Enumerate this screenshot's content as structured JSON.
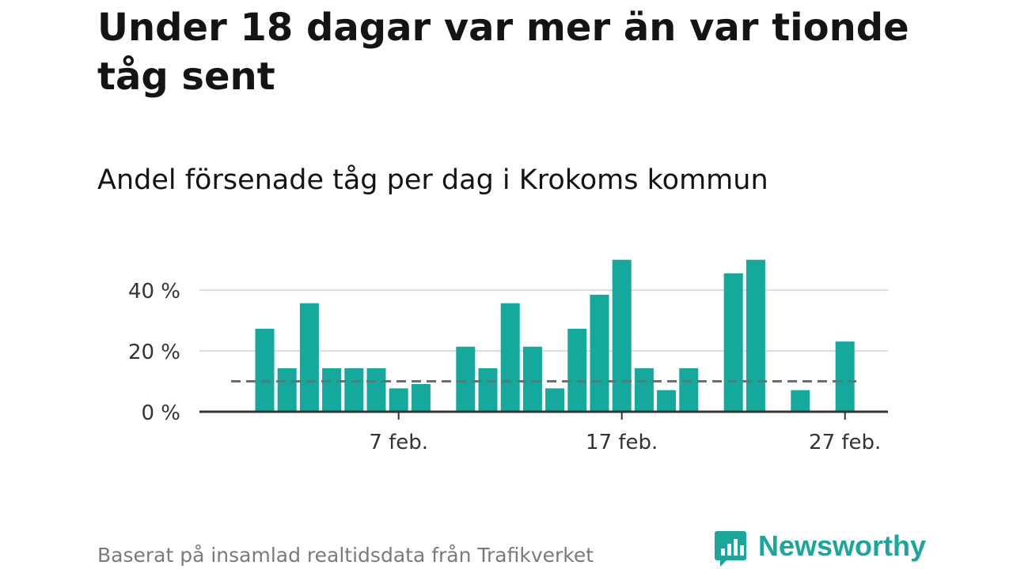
{
  "title": "Under 18 dagar var mer än var tionde tåg sent",
  "subtitle": "Andel försenade tåg per dag i Krokoms kommun",
  "footer": "Baserat på insamlad realtidsdata från Trafikverket",
  "brand": {
    "name": "Newsworthy",
    "icon": "newsworthy-logo-icon"
  },
  "colors": {
    "bar": "#15a89d",
    "reference": "#6f6f6f",
    "grid": "#dcdcdc",
    "axis": "#333333"
  },
  "chart_data": {
    "type": "bar",
    "unit": "%",
    "y_ticks": [
      {
        "value": 0,
        "label": "0 %"
      },
      {
        "value": 20,
        "label": "20 %"
      },
      {
        "value": 40,
        "label": "40 %"
      }
    ],
    "ylim": [
      0,
      52
    ],
    "x_ticks": [
      {
        "day": 7,
        "label": "7 feb."
      },
      {
        "day": 17,
        "label": "17 feb."
      },
      {
        "day": 27,
        "label": "27 feb."
      }
    ],
    "reference_line": 10,
    "grid": true,
    "points": [
      {
        "day": 1,
        "value": 27.3
      },
      {
        "day": 2,
        "value": 14.3
      },
      {
        "day": 3,
        "value": 35.7
      },
      {
        "day": 4,
        "value": 14.3
      },
      {
        "day": 5,
        "value": 14.3
      },
      {
        "day": 6,
        "value": 14.3
      },
      {
        "day": 7,
        "value": 7.7
      },
      {
        "day": 8,
        "value": 9.1
      },
      {
        "day": 10,
        "value": 21.4
      },
      {
        "day": 11,
        "value": 14.3
      },
      {
        "day": 12,
        "value": 35.7
      },
      {
        "day": 13,
        "value": 21.4
      },
      {
        "day": 14,
        "value": 7.7
      },
      {
        "day": 15,
        "value": 27.3
      },
      {
        "day": 16,
        "value": 38.5
      },
      {
        "day": 17,
        "value": 50.0
      },
      {
        "day": 18,
        "value": 14.3
      },
      {
        "day": 19,
        "value": 7.1
      },
      {
        "day": 20,
        "value": 14.3
      },
      {
        "day": 22,
        "value": 45.5
      },
      {
        "day": 23,
        "value": 50.0
      },
      {
        "day": 25,
        "value": 7.1
      },
      {
        "day": 27,
        "value": 23.1
      }
    ]
  }
}
